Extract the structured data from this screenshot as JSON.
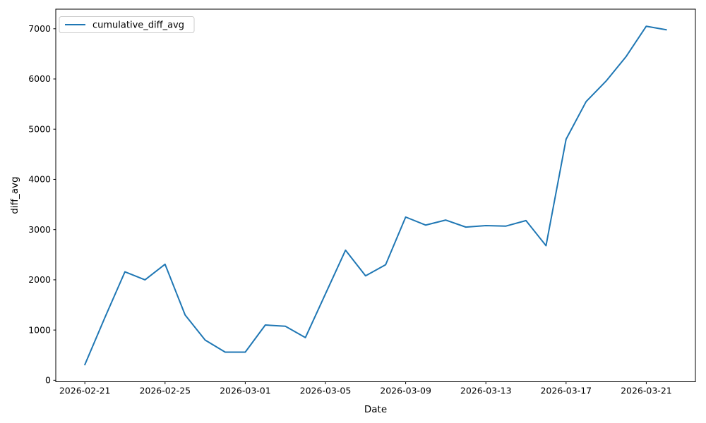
{
  "chart_data": {
    "type": "line",
    "title": "",
    "xlabel": "Date",
    "ylabel": "diff_avg",
    "grid": false,
    "legend": {
      "position": "upper left",
      "entries": [
        "cumulative_diff_avg"
      ]
    },
    "x": [
      "2026-02-21",
      "2026-02-22",
      "2026-02-23",
      "2026-02-24",
      "2026-02-25",
      "2026-02-26",
      "2026-02-27",
      "2026-02-28",
      "2026-03-01",
      "2026-03-02",
      "2026-03-03",
      "2026-03-04",
      "2026-03-05",
      "2026-03-06",
      "2026-03-07",
      "2026-03-08",
      "2026-03-09",
      "2026-03-10",
      "2026-03-11",
      "2026-03-12",
      "2026-03-13",
      "2026-03-14",
      "2026-03-15",
      "2026-03-16",
      "2026-03-17",
      "2026-03-18",
      "2026-03-19",
      "2026-03-20",
      "2026-03-21",
      "2026-03-22"
    ],
    "series": [
      {
        "name": "cumulative_diff_avg",
        "color": "#1f77b4",
        "values": [
          310,
          1250,
          2160,
          2000,
          2310,
          1300,
          800,
          560,
          560,
          1100,
          1075,
          850,
          1720,
          2590,
          2080,
          2300,
          3250,
          3090,
          3190,
          3050,
          3080,
          3070,
          3180,
          2680,
          4800,
          5550,
          5960,
          6450,
          7050,
          6980
        ]
      }
    ],
    "ylim": [
      -30,
      7390
    ],
    "yticks": [
      0,
      1000,
      2000,
      3000,
      4000,
      5000,
      6000,
      7000
    ],
    "xticks": [
      "2026-02-21",
      "2026-02-25",
      "2026-03-01",
      "2026-03-05",
      "2026-03-09",
      "2026-03-13",
      "2026-03-17",
      "2026-03-21"
    ]
  }
}
